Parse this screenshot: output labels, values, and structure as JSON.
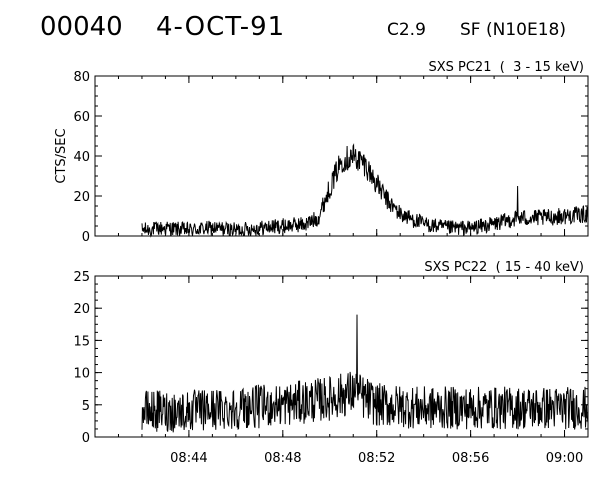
{
  "header": {
    "event_id": "00040",
    "date": "4-OCT-91",
    "goes_class": "C2.9",
    "flare_location": "SF (N10E18)"
  },
  "chart_data": [
    {
      "type": "line",
      "title": "SXS PC21  (  3 - 15 keV)",
      "ylabel": "CTS/SEC",
      "xlabel": "",
      "ylim": [
        0,
        80
      ],
      "yticks": [
        0,
        20,
        40,
        60,
        80
      ],
      "xlim": [
        "08:40",
        "09:01"
      ],
      "xticks": [
        "08:44",
        "08:48",
        "08:52",
        "08:56",
        "09:00"
      ],
      "grid": false,
      "series": [
        {
          "x": [
            "08:42",
            "08:43",
            "08:44",
            "08:45",
            "08:46",
            "08:47",
            "08:48",
            "08:49",
            "08:49:30",
            "08:50",
            "08:50:30",
            "08:51",
            "08:51:30",
            "08:52",
            "08:52:30",
            "08:53",
            "08:54",
            "08:55",
            "08:56",
            "08:57",
            "08:58",
            "08:59",
            "09:00",
            "09:01"
          ],
          "values": [
            3,
            4,
            3,
            4,
            3,
            4,
            5,
            6,
            9,
            24,
            38,
            40,
            36,
            26,
            17,
            11,
            6,
            4,
            4,
            6,
            9,
            9,
            10,
            11
          ],
          "noise": 3.5,
          "spike": {
            "x": "08:58",
            "value": 25
          }
        }
      ]
    },
    {
      "type": "line",
      "title": "SXS PC22  ( 15 - 40 keV)",
      "ylabel": "",
      "xlabel": "",
      "ylim": [
        0,
        25
      ],
      "yticks": [
        0,
        5,
        10,
        15,
        20,
        25
      ],
      "xlim": [
        "08:40",
        "09:01"
      ],
      "xticks": [
        "08:44",
        "08:48",
        "08:52",
        "08:56",
        "09:00"
      ],
      "grid": false,
      "series": [
        {
          "x": [
            "08:42",
            "08:44",
            "08:46",
            "08:48",
            "08:50",
            "08:51",
            "08:52",
            "08:54",
            "08:56",
            "08:58",
            "09:00",
            "09:01"
          ],
          "values": [
            4,
            4,
            4.5,
            5,
            6,
            7,
            5,
            4.5,
            4.5,
            4.5,
            4.5,
            4.5
          ],
          "noise": 3,
          "spike": {
            "x": "08:51:10",
            "value": 19
          }
        }
      ]
    }
  ]
}
